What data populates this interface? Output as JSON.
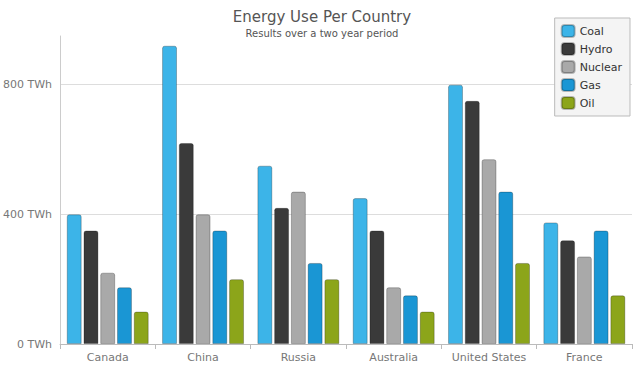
{
  "chart_data": {
    "type": "bar",
    "title": "Energy Use Per Country",
    "subtitle": "Results over a two year period",
    "categories": [
      "Canada",
      "China",
      "Russia",
      "Australia",
      "United States",
      "France"
    ],
    "series": [
      {
        "name": "Coal",
        "color": "#3cb4e8",
        "values": [
          400,
          920,
          550,
          450,
          800,
          375
        ]
      },
      {
        "name": "Hydro",
        "color": "#3a3a3a",
        "values": [
          350,
          620,
          420,
          350,
          750,
          320
        ]
      },
      {
        "name": "Nuclear",
        "color": "#a9a9a9",
        "values": [
          220,
          400,
          470,
          175,
          570,
          270
        ]
      },
      {
        "name": "Gas",
        "color": "#1a96d4",
        "values": [
          175,
          350,
          250,
          150,
          470,
          350
        ]
      },
      {
        "name": "Oil",
        "color": "#8ca51a",
        "values": [
          100,
          200,
          200,
          100,
          250,
          150
        ]
      }
    ],
    "ylim": [
      0,
      950
    ],
    "yticks": [
      {
        "value": 0,
        "label": "0 TWh"
      },
      {
        "value": 400,
        "label": "400 TWh"
      },
      {
        "value": 800,
        "label": "800 TWh"
      }
    ],
    "grid": true,
    "legend": "top-right"
  }
}
